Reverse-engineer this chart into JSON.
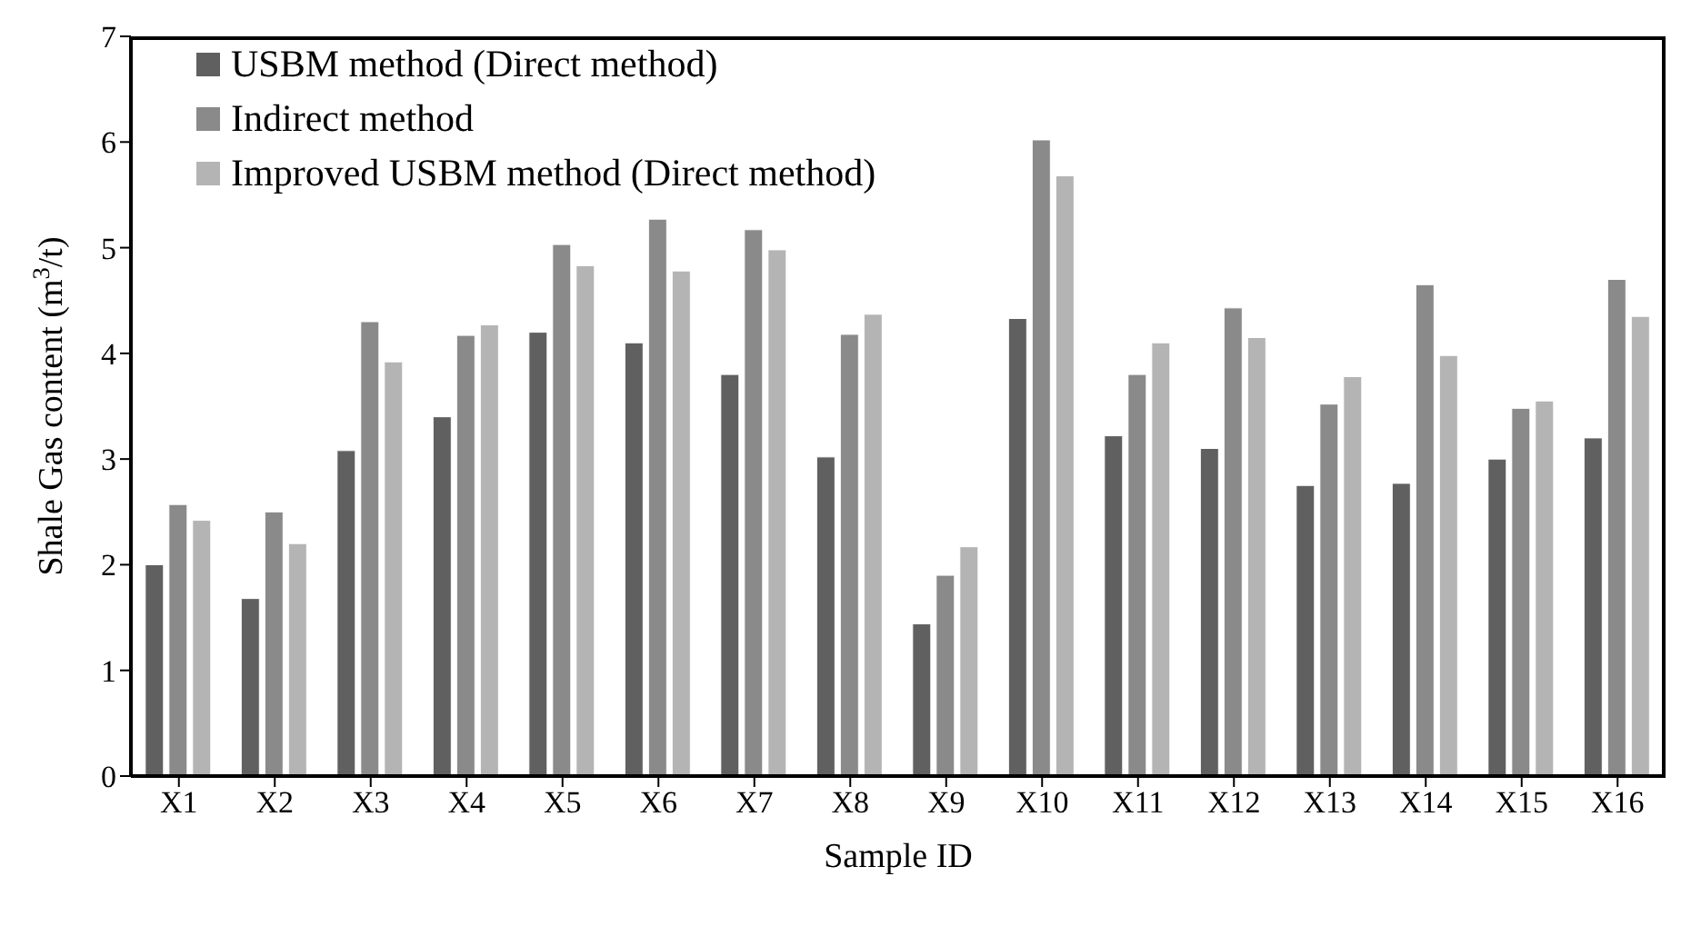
{
  "chart_data": {
    "type": "bar",
    "xlabel": "Sample ID",
    "ylabel": "Shale Gas content  (m$^{3}$/t)",
    "categories": [
      "X1",
      "X2",
      "X3",
      "X4",
      "X5",
      "X6",
      "X7",
      "X8",
      "X9",
      "X10",
      "X11",
      "X12",
      "X13",
      "X14",
      "X15",
      "X16"
    ],
    "series": [
      {
        "name": "USBM method (Direct method)",
        "color": "#606060",
        "values": [
          2.0,
          1.68,
          3.08,
          3.4,
          4.2,
          4.1,
          3.8,
          3.02,
          1.44,
          4.33,
          3.22,
          3.1,
          2.75,
          2.77,
          3.0,
          3.2
        ]
      },
      {
        "name": "Indirect method",
        "color": "#8a8a8a",
        "values": [
          2.57,
          2.5,
          4.3,
          4.17,
          5.03,
          5.27,
          5.17,
          4.18,
          1.9,
          6.02,
          3.8,
          4.43,
          3.52,
          4.65,
          3.48,
          4.7
        ]
      },
      {
        "name": "Improved USBM method (Direct method)",
        "color": "#b4b4b4",
        "values": [
          2.42,
          2.2,
          3.92,
          4.27,
          4.83,
          4.78,
          4.98,
          4.37,
          2.17,
          5.68,
          4.1,
          4.15,
          3.78,
          3.98,
          3.55,
          4.35
        ]
      }
    ],
    "ylim": [
      0,
      7
    ],
    "yticks": [
      0,
      1,
      2,
      3,
      4,
      5,
      6,
      7
    ],
    "grid": false,
    "legend": "top left"
  }
}
